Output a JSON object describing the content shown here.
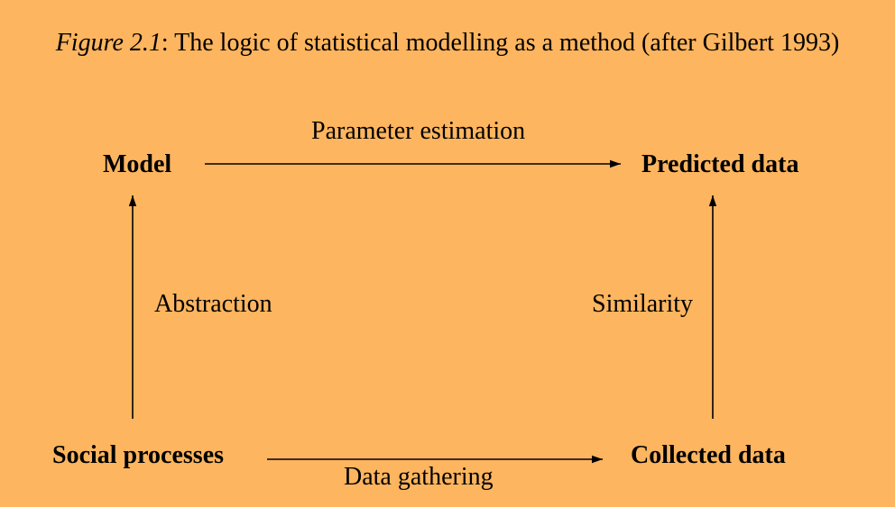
{
  "caption": {
    "figure_number": "Figure 2.1",
    "separator": ":",
    "text": " The logic of statistical modelling as a method (after Gilbert 1993)"
  },
  "nodes": {
    "model": "Model",
    "predicted_data": "Predicted data",
    "social_processes": "Social processes",
    "collected_data": "Collected data"
  },
  "edges": {
    "parameter_estimation": "Parameter estimation",
    "abstraction": "Abstraction",
    "similarity": "Similarity",
    "data_gathering": "Data gathering"
  },
  "colors": {
    "background": "#FDB55F",
    "ink": "#000000"
  }
}
